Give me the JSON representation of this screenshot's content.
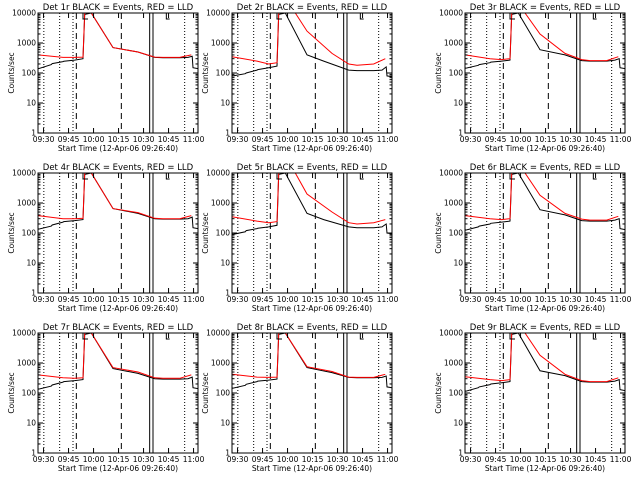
{
  "figure": {
    "xlabel": "Start Time (12-Apr-06 09:26:40)",
    "ylabel": "Counts/sec",
    "x_ticks": [
      "09:30",
      "09:45",
      "10:00",
      "10:15",
      "10:30",
      "10:45",
      "11:00"
    ],
    "y_ticks": [
      "1",
      "10",
      "100",
      "1000",
      "10000"
    ],
    "colors": {
      "events": "#000000",
      "lld": "#ff0000",
      "axis": "#000000"
    }
  },
  "chart_data": [
    {
      "type": "line",
      "title": "Det 1r BLACK = Events, RED = LLD",
      "x_range_min": [
        0,
        96
      ],
      "y_scale": "log",
      "y_range": [
        1,
        10000
      ],
      "grid": "none",
      "series": [
        {
          "name": "Events",
          "color": "#000000",
          "x": [
            0,
            0.5,
            8,
            8.5,
            15,
            15.5,
            22,
            27,
            28,
            32,
            45,
            60,
            70,
            75,
            85,
            90,
            92.5,
            93,
            96
          ],
          "y": [
            145,
            140,
            190,
            205,
            240,
            245,
            270,
            300,
            9000,
            10000,
            700,
            500,
            330,
            320,
            320,
            330,
            360,
            150,
            140
          ]
        },
        {
          "name": "LLD",
          "color": "#ff0000",
          "x": [
            0,
            15,
            22,
            27,
            28,
            32,
            45,
            60,
            70,
            75,
            85,
            92
          ],
          "y": [
            400,
            330,
            330,
            340,
            10000,
            10000,
            700,
            500,
            340,
            330,
            330,
            400
          ]
        }
      ]
    },
    {
      "type": "line",
      "title": "Det 2r BLACK = Events, RED = LLD",
      "x_range_min": [
        0,
        96
      ],
      "y_scale": "log",
      "y_range": [
        1,
        10000
      ],
      "grid": "none",
      "series": [
        {
          "name": "Events",
          "color": "#000000",
          "x": [
            0,
            0.5,
            8,
            8.5,
            15,
            15.5,
            22,
            27,
            28,
            32,
            45,
            55,
            70,
            75,
            85,
            90,
            92.5,
            93,
            96
          ],
          "y": [
            85,
            80,
            95,
            100,
            125,
            130,
            150,
            170,
            9000,
            10000,
            400,
            250,
            125,
            120,
            120,
            125,
            160,
            80,
            75
          ]
        },
        {
          "name": "LLD",
          "color": "#ff0000",
          "x": [
            0,
            15,
            22,
            27,
            28,
            38,
            45,
            60,
            70,
            75,
            85,
            92
          ],
          "y": [
            350,
            250,
            200,
            220,
            10000,
            10000,
            2500,
            450,
            200,
            180,
            200,
            300
          ]
        }
      ]
    },
    {
      "type": "line",
      "title": "Det 3r BLACK = Events, RED = LLD",
      "x_range_min": [
        0,
        96
      ],
      "y_scale": "log",
      "y_range": [
        1,
        10000
      ],
      "grid": "none",
      "series": [
        {
          "name": "Events",
          "color": "#000000",
          "x": [
            0,
            0.5,
            8,
            8.5,
            15,
            15.5,
            22,
            27,
            28,
            32,
            45,
            60,
            70,
            75,
            85,
            90,
            92.5,
            93,
            96
          ],
          "y": [
            150,
            145,
            180,
            190,
            220,
            230,
            250,
            270,
            9000,
            10000,
            600,
            400,
            260,
            250,
            250,
            270,
            300,
            150,
            140
          ]
        },
        {
          "name": "LLD",
          "color": "#ff0000",
          "x": [
            0,
            15,
            22,
            27,
            28,
            36,
            45,
            60,
            70,
            75,
            85,
            92
          ],
          "y": [
            400,
            300,
            280,
            300,
            10000,
            10000,
            2000,
            450,
            280,
            260,
            260,
            350
          ]
        }
      ]
    },
    {
      "type": "line",
      "title": "Det 4r BLACK = Events, RED = LLD",
      "x_range_min": [
        0,
        96
      ],
      "y_scale": "log",
      "y_range": [
        1,
        10000
      ],
      "grid": "none",
      "series": [
        {
          "name": "Events",
          "color": "#000000",
          "x": [
            0,
            0.5,
            8,
            8.5,
            15,
            15.5,
            22,
            27,
            28,
            32,
            45,
            60,
            70,
            75,
            85,
            90,
            92.5,
            93,
            96
          ],
          "y": [
            140,
            135,
            170,
            185,
            230,
            240,
            260,
            280,
            9000,
            10000,
            650,
            450,
            300,
            290,
            290,
            300,
            340,
            150,
            140
          ]
        },
        {
          "name": "LLD",
          "color": "#ff0000",
          "x": [
            0,
            15,
            22,
            27,
            28,
            32,
            45,
            60,
            70,
            75,
            85,
            92
          ],
          "y": [
            380,
            300,
            300,
            310,
            10000,
            10000,
            650,
            480,
            310,
            300,
            300,
            380
          ]
        }
      ]
    },
    {
      "type": "line",
      "title": "Det 5r BLACK = Events, RED = LLD",
      "x_range_min": [
        0,
        96
      ],
      "y_scale": "log",
      "y_range": [
        1,
        10000
      ],
      "grid": "none",
      "series": [
        {
          "name": "Events",
          "color": "#000000",
          "x": [
            0,
            0.5,
            8,
            8.5,
            15,
            15.5,
            22,
            27,
            28,
            32,
            45,
            55,
            70,
            75,
            85,
            90,
            92.5,
            93,
            96
          ],
          "y": [
            95,
            90,
            110,
            120,
            140,
            145,
            160,
            180,
            9000,
            10000,
            450,
            280,
            160,
            150,
            150,
            160,
            200,
            100,
            95
          ]
        },
        {
          "name": "LLD",
          "color": "#ff0000",
          "x": [
            0,
            15,
            22,
            27,
            28,
            38,
            45,
            60,
            70,
            75,
            85,
            92
          ],
          "y": [
            350,
            250,
            220,
            240,
            10000,
            10000,
            2000,
            500,
            220,
            200,
            220,
            280
          ]
        }
      ]
    },
    {
      "type": "line",
      "title": "Det 6r BLACK = Events, RED = LLD",
      "x_range_min": [
        0,
        96
      ],
      "y_scale": "log",
      "y_range": [
        1,
        10000
      ],
      "grid": "none",
      "series": [
        {
          "name": "Events",
          "color": "#000000",
          "x": [
            0,
            0.5,
            8,
            8.5,
            15,
            15.5,
            22,
            27,
            28,
            32,
            45,
            60,
            70,
            75,
            85,
            90,
            92.5,
            93,
            96
          ],
          "y": [
            130,
            125,
            160,
            170,
            200,
            210,
            230,
            250,
            9000,
            10000,
            600,
            400,
            260,
            250,
            250,
            270,
            300,
            140,
            130
          ]
        },
        {
          "name": "LLD",
          "color": "#ff0000",
          "x": [
            0,
            15,
            22,
            27,
            28,
            36,
            45,
            60,
            70,
            75,
            85,
            92
          ],
          "y": [
            380,
            300,
            280,
            300,
            10000,
            10000,
            1800,
            450,
            290,
            270,
            270,
            360
          ]
        }
      ]
    },
    {
      "type": "line",
      "title": "Det 7r BLACK = Events, RED = LLD",
      "x_range_min": [
        0,
        96
      ],
      "y_scale": "log",
      "y_range": [
        1,
        10000
      ],
      "grid": "none",
      "series": [
        {
          "name": "Events",
          "color": "#000000",
          "x": [
            0,
            0.5,
            8,
            8.5,
            15,
            15.5,
            22,
            27,
            28,
            32,
            45,
            60,
            70,
            75,
            85,
            90,
            92.5,
            93,
            96
          ],
          "y": [
            140,
            135,
            170,
            185,
            230,
            240,
            260,
            280,
            9000,
            10000,
            650,
            450,
            300,
            290,
            290,
            300,
            340,
            150,
            140
          ]
        },
        {
          "name": "LLD",
          "color": "#ff0000",
          "x": [
            0,
            15,
            22,
            27,
            28,
            32,
            45,
            60,
            70,
            75,
            85,
            92
          ],
          "y": [
            400,
            320,
            310,
            320,
            10000,
            10000,
            700,
            500,
            320,
            310,
            310,
            400
          ]
        }
      ]
    },
    {
      "type": "line",
      "title": "Det 8r BLACK = Events, RED = LLD",
      "x_range_min": [
        0,
        96
      ],
      "y_scale": "log",
      "y_range": [
        1,
        10000
      ],
      "grid": "none",
      "series": [
        {
          "name": "Events",
          "color": "#000000",
          "x": [
            0,
            0.5,
            8,
            8.5,
            15,
            15.5,
            22,
            27,
            28,
            32,
            45,
            60,
            70,
            75,
            85,
            90,
            92.5,
            93,
            96
          ],
          "y": [
            150,
            145,
            180,
            195,
            240,
            250,
            270,
            290,
            9000,
            10000,
            700,
            480,
            330,
            320,
            320,
            330,
            370,
            160,
            150
          ]
        },
        {
          "name": "LLD",
          "color": "#ff0000",
          "x": [
            0,
            15,
            22,
            27,
            28,
            32,
            45,
            60,
            70,
            75,
            85,
            92
          ],
          "y": [
            420,
            340,
            330,
            340,
            10000,
            10000,
            750,
            520,
            340,
            330,
            330,
            420
          ]
        }
      ]
    },
    {
      "type": "line",
      "title": "Det 9r BLACK = Events, RED = LLD",
      "x_range_min": [
        0,
        96
      ],
      "y_scale": "log",
      "y_range": [
        1,
        10000
      ],
      "grid": "none",
      "series": [
        {
          "name": "Events",
          "color": "#000000",
          "x": [
            0,
            0.5,
            8,
            8.5,
            15,
            15.5,
            22,
            27,
            28,
            32,
            45,
            60,
            70,
            75,
            85,
            90,
            92.5,
            93,
            96
          ],
          "y": [
            120,
            115,
            150,
            160,
            190,
            200,
            220,
            240,
            9000,
            10000,
            550,
            380,
            240,
            230,
            230,
            250,
            280,
            130,
            120
          ]
        },
        {
          "name": "LLD",
          "color": "#ff0000",
          "x": [
            0,
            15,
            22,
            27,
            28,
            36,
            45,
            60,
            70,
            75,
            85,
            92
          ],
          "y": [
            350,
            280,
            260,
            280,
            10000,
            10000,
            1800,
            420,
            260,
            240,
            240,
            320
          ]
        }
      ]
    }
  ],
  "markers": {
    "x_range_min": [
      0,
      96
    ],
    "dotted_x": [
      3.5,
      13,
      21,
      88
    ],
    "dashed_x": [
      23,
      50
    ],
    "solid_x": [
      67,
      69
    ],
    "brackets": [
      {
        "x_start": 27,
        "x_end": 30
      },
      {
        "x_start": 77,
        "x_end": 79
      }
    ]
  }
}
